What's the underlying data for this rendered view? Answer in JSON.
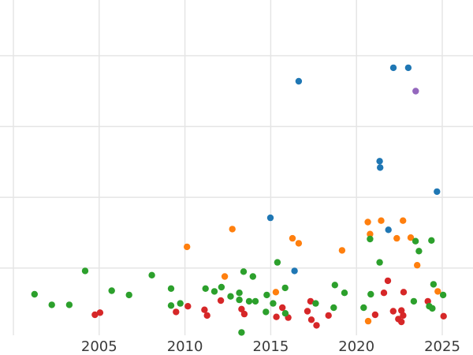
{
  "chart_data": {
    "type": "scatter",
    "title": "",
    "x_axis": {
      "tick_labels": [
        "2005",
        "2010",
        "2015",
        "2020",
        "2025"
      ],
      "tick_years": [
        2005,
        2010,
        2015,
        2020,
        2025
      ],
      "gridline_years": [
        2000,
        2005,
        2010,
        2015,
        2020,
        2025
      ],
      "range_years": [
        1999.2,
        2026.8
      ],
      "label_color": "#3a3a3a"
    },
    "y_axis": {
      "tick_labels_visible": false,
      "note": "y values in gridline-spacing units above the bottom plot edge; no y tick labels are visible in the image",
      "gridline_units": [
        0.95,
        1.95,
        2.95,
        3.95
      ]
    },
    "grid": {
      "on": true,
      "color": "#e5e5e5"
    },
    "marker": {
      "shape": "circle",
      "radius_px": 4.2
    },
    "legend": {
      "visible": false
    },
    "series": [
      {
        "name": "blue",
        "color": "#1f77b4",
        "points": [
          [
            2014.98,
            1.66
          ],
          [
            2016.39,
            0.91
          ],
          [
            2016.63,
            3.59
          ],
          [
            2021.35,
            2.46
          ],
          [
            2021.38,
            2.37
          ],
          [
            2021.86,
            1.49
          ],
          [
            2022.15,
            3.78
          ],
          [
            2023.02,
            3.78
          ],
          [
            2024.69,
            2.03
          ]
        ]
      },
      {
        "name": "orange",
        "color": "#ff7f0e",
        "points": [
          [
            2010.12,
            1.25
          ],
          [
            2012.32,
            0.83
          ],
          [
            2012.76,
            1.5
          ],
          [
            2015.3,
            0.61
          ],
          [
            2016.27,
            1.37
          ],
          [
            2016.63,
            1.3
          ],
          [
            2019.16,
            1.2
          ],
          [
            2020.66,
            1.6
          ],
          [
            2020.68,
            0.2
          ],
          [
            2020.79,
            1.43
          ],
          [
            2021.44,
            1.62
          ],
          [
            2022.35,
            1.37
          ],
          [
            2022.71,
            1.62
          ],
          [
            2023.16,
            1.38
          ],
          [
            2023.54,
            0.99
          ],
          [
            2024.74,
            0.62
          ]
        ]
      },
      {
        "name": "red",
        "color": "#d62728",
        "points": [
          [
            2004.75,
            0.29
          ],
          [
            2005.05,
            0.32
          ],
          [
            2009.48,
            0.33
          ],
          [
            2010.17,
            0.41
          ],
          [
            2011.14,
            0.36
          ],
          [
            2011.29,
            0.28
          ],
          [
            2012.09,
            0.49
          ],
          [
            2013.3,
            0.37
          ],
          [
            2013.46,
            0.3
          ],
          [
            2015.33,
            0.26
          ],
          [
            2015.68,
            0.39
          ],
          [
            2016.02,
            0.25
          ],
          [
            2017.14,
            0.34
          ],
          [
            2017.32,
            0.48
          ],
          [
            2017.37,
            0.22
          ],
          [
            2017.67,
            0.14
          ],
          [
            2018.37,
            0.28
          ],
          [
            2021.09,
            0.29
          ],
          [
            2021.6,
            0.6
          ],
          [
            2021.83,
            0.77
          ],
          [
            2022.14,
            0.34
          ],
          [
            2022.44,
            0.23
          ],
          [
            2022.62,
            0.35
          ],
          [
            2022.62,
            0.19
          ],
          [
            2022.72,
            0.28
          ],
          [
            2022.75,
            0.61
          ],
          [
            2024.16,
            0.48
          ],
          [
            2025.08,
            0.27
          ]
        ]
      },
      {
        "name": "green",
        "color": "#2ca02c",
        "points": [
          [
            2001.23,
            0.58
          ],
          [
            2002.24,
            0.43
          ],
          [
            2003.26,
            0.43
          ],
          [
            2004.18,
            0.91
          ],
          [
            2005.73,
            0.63
          ],
          [
            2006.74,
            0.57
          ],
          [
            2008.07,
            0.85
          ],
          [
            2009.19,
            0.66
          ],
          [
            2009.19,
            0.42
          ],
          [
            2009.73,
            0.45
          ],
          [
            2011.2,
            0.66
          ],
          [
            2011.72,
            0.62
          ],
          [
            2012.13,
            0.68
          ],
          [
            2012.66,
            0.55
          ],
          [
            2013.17,
            0.6
          ],
          [
            2013.17,
            0.5
          ],
          [
            2013.3,
            0.04
          ],
          [
            2013.42,
            0.9
          ],
          [
            2013.74,
            0.48
          ],
          [
            2013.96,
            0.83
          ],
          [
            2014.11,
            0.48
          ],
          [
            2014.72,
            0.33
          ],
          [
            2014.77,
            0.57
          ],
          [
            2015.14,
            0.45
          ],
          [
            2015.39,
            1.03
          ],
          [
            2015.84,
            0.67
          ],
          [
            2015.85,
            0.31
          ],
          [
            2017.62,
            0.45
          ],
          [
            2018.67,
            0.39
          ],
          [
            2018.74,
            0.71
          ],
          [
            2019.3,
            0.6
          ],
          [
            2020.42,
            0.39
          ],
          [
            2020.79,
            1.36
          ],
          [
            2020.83,
            0.58
          ],
          [
            2021.35,
            1.03
          ],
          [
            2023.34,
            0.48
          ],
          [
            2023.44,
            1.33
          ],
          [
            2023.64,
            1.19
          ],
          [
            2024.24,
            0.41
          ],
          [
            2024.37,
            1.34
          ],
          [
            2024.42,
            0.38
          ],
          [
            2024.49,
            0.72
          ],
          [
            2025.05,
            0.57
          ]
        ]
      },
      {
        "name": "purple",
        "color": "#9467bd",
        "points": [
          [
            2023.45,
            3.45
          ]
        ]
      }
    ]
  }
}
